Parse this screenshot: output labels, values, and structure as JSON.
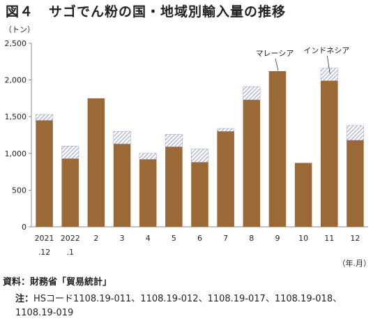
{
  "title": {
    "figure_no": "図４",
    "text": "サゴでん粉の国・地域別輸入量の推移"
  },
  "source": "資料：財務省「貿易統計」",
  "note": {
    "label": "注：",
    "text": "HSコード1108.19-011、1108.19-012、1108.19-017、1108.19-018、1108.19-019"
  },
  "colors": {
    "main": "#9b6935",
    "hatch": "#7b86b8",
    "axis": "#888888"
  },
  "chart_data": {
    "type": "bar",
    "stacked": true,
    "y_unit_label": "（トン）",
    "x_unit_label": "（年.月）",
    "ylim": [
      0,
      2500
    ],
    "yticks": [
      0,
      500,
      1000,
      1500,
      2000,
      2500
    ],
    "ytick_labels": [
      "0",
      "500",
      "1,000",
      "1,500",
      "2,000",
      "2,500"
    ],
    "grid": false,
    "categories": [
      [
        "2021",
        ".12"
      ],
      [
        "2022",
        ".1"
      ],
      [
        "2"
      ],
      [
        "3"
      ],
      [
        "4"
      ],
      [
        "5"
      ],
      [
        "6"
      ],
      [
        "7"
      ],
      [
        "8"
      ],
      [
        "9"
      ],
      [
        "10"
      ],
      [
        "11"
      ],
      [
        "12"
      ]
    ],
    "series": [
      {
        "name": "マレーシア",
        "values": [
          1450,
          930,
          1750,
          1130,
          920,
          1090,
          880,
          1300,
          1730,
          2120,
          870,
          1990,
          1180
        ]
      },
      {
        "name": "インドネシア",
        "values": [
          80,
          170,
          0,
          170,
          80,
          170,
          180,
          40,
          180,
          0,
          0,
          170,
          200
        ]
      }
    ],
    "annotations": [
      {
        "text": "マレーシア",
        "category_index": 9,
        "series": 0
      },
      {
        "text": "インドネシア",
        "category_index": 11,
        "series": 1
      }
    ]
  }
}
